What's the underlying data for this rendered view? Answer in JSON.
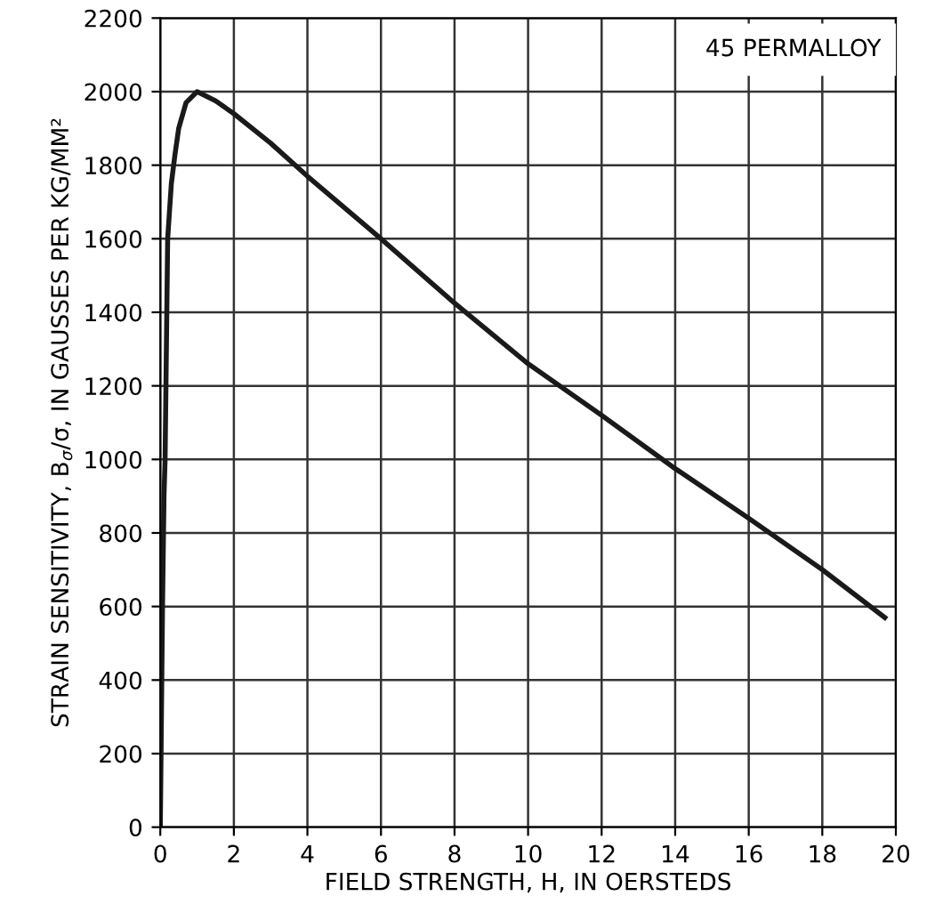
{
  "chart_data": {
    "type": "line",
    "xlabel": "FIELD STRENGTH, H, IN OERSTEDS",
    "ylabel": "STRAIN SENSITIVITY, B$_{σ}$/σ, IN GAUSSES PER KG/MM²",
    "annotations": [
      "45 PERMALLOY"
    ],
    "x": [
      0,
      0.03,
      0.06,
      0.1,
      0.13,
      0.2,
      0.3,
      0.4,
      0.5,
      0.7,
      1,
      1.5,
      2,
      3,
      4,
      6,
      8,
      10,
      12,
      14,
      16,
      18,
      19.7
    ],
    "series": [
      {
        "color": "#1a1a1a",
        "values": [
          0,
          300,
          600,
          900,
          1000,
          1600,
          1750,
          1830,
          1900,
          1970,
          2000,
          1975,
          1940,
          1860,
          1770,
          1600,
          1425,
          1260,
          1120,
          975,
          840,
          700,
          570
        ]
      }
    ],
    "xlim": [
      0,
      20
    ],
    "xticks": [
      0,
      2,
      4,
      6,
      8,
      10,
      12,
      14,
      16,
      18,
      20
    ],
    "ylim": [
      0,
      2200
    ],
    "yticks": [
      0,
      200,
      400,
      600,
      800,
      1000,
      1200,
      1400,
      1600,
      1800,
      2000,
      2200
    ],
    "grid": true,
    "marker": "none",
    "line_style": "solid"
  }
}
